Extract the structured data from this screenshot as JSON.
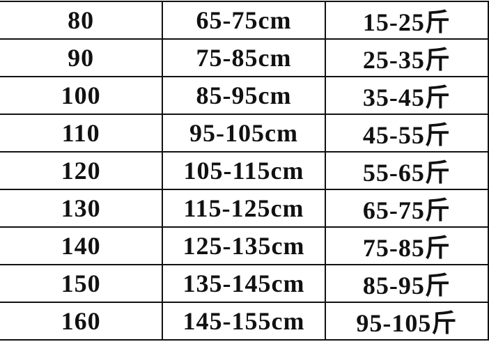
{
  "rows": [
    [
      "80",
      "65-75cm",
      "15-25斤"
    ],
    [
      "90",
      "75-85cm",
      "25-35斤"
    ],
    [
      "100",
      "85-95cm",
      "35-45斤"
    ],
    [
      "110",
      "95-105cm",
      "45-55斤"
    ],
    [
      "120",
      "105-115cm",
      "55-65斤"
    ],
    [
      "130",
      "115-125cm",
      "65-75斤"
    ],
    [
      "140",
      "125-135cm",
      "75-85斤"
    ],
    [
      "150",
      "135-145cm",
      "85-95斤"
    ],
    [
      "160",
      "145-155cm",
      "95-105斤"
    ]
  ]
}
